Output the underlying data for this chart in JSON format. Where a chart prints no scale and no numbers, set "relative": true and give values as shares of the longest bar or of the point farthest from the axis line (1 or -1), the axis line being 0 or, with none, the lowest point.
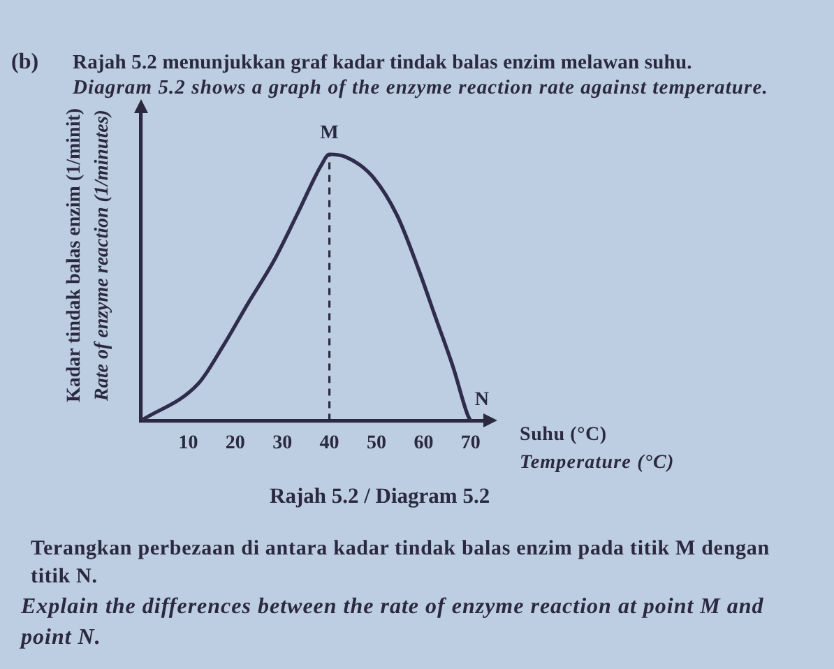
{
  "chart_data": {
    "type": "line",
    "title": "Rajah 5.2 menunjukkan graf kadar tindak balas enzim melawan suhu.",
    "subtitle": "Diagram 5.2 shows a graph of the enzyme reaction rate against temperature.",
    "xlabel": "Suhu (°C)\nTemperature (°C)",
    "ylabel": "Kadar tindak balas enzim (1/minit)\nRate of enzyme reaction (1/minutes)",
    "annotations": [
      "(b)",
      {
        "text": "M",
        "x": 40,
        "y": 1
      },
      {
        "text": "N",
        "x": 70,
        "y": 0
      },
      "Rajah 5.2 / Diagram 5.2",
      "Terangkan perbezaan di antara kadar tindak balas enzim pada titik M dengan titik N.",
      "Explain the differences between the rate of enzyme reaction at point M and point N."
    ],
    "x": [
      0,
      12.2,
      17.4,
      22.7,
      28.2,
      33.3,
      38.3,
      40,
      43.5,
      49,
      54.4,
      58.9,
      62.5,
      66.3,
      69.4,
      70
    ],
    "series": [
      {
        "color": "#2f2c4c",
        "values": [
          0,
          0.14,
          0.28,
          0.44,
          0.6,
          0.78,
          0.96,
          1,
          0.99,
          0.92,
          0.77,
          0.57,
          0.39,
          0.2,
          0.02,
          0
        ]
      }
    ],
    "relative": true,
    "xlim": [
      0,
      73
    ],
    "xticks": [
      10,
      20,
      30,
      40,
      50,
      60,
      70
    ],
    "ref_lines": [
      {
        "axis": "x",
        "value": 40,
        "line_style": "dashed"
      }
    ],
    "grid": false,
    "tick_labels": "x",
    "marker": "none",
    "line_style": "solid"
  }
}
